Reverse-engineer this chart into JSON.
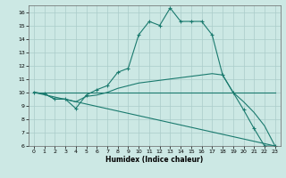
{
  "xlabel": "Humidex (Indice chaleur)",
  "xlim": [
    -0.5,
    23.5
  ],
  "ylim": [
    6,
    16.5
  ],
  "yticks": [
    6,
    7,
    8,
    9,
    10,
    11,
    12,
    13,
    14,
    15,
    16
  ],
  "xticks": [
    0,
    1,
    2,
    3,
    4,
    5,
    6,
    7,
    8,
    9,
    10,
    11,
    12,
    13,
    14,
    15,
    16,
    17,
    18,
    19,
    20,
    21,
    22,
    23
  ],
  "bg_color": "#cce8e4",
  "grid_color": "#aaccca",
  "line_color": "#1a7a6e",
  "lines": [
    {
      "x": [
        0,
        1,
        2,
        3,
        4,
        5,
        6,
        7,
        8,
        9,
        10,
        11,
        12,
        13,
        14,
        15,
        16,
        17,
        18,
        19,
        20,
        21,
        22,
        23
      ],
      "y": [
        10,
        9.9,
        9.5,
        9.5,
        8.8,
        9.8,
        10.2,
        10.5,
        11.5,
        11.8,
        14.3,
        15.3,
        15.0,
        16.3,
        15.3,
        15.3,
        15.3,
        14.3,
        11.3,
        10.0,
        8.7,
        7.3,
        6.0,
        6.0
      ],
      "marker": true
    },
    {
      "x": [
        0,
        1,
        2,
        3,
        4,
        5,
        6,
        7,
        8,
        9,
        10,
        11,
        12,
        13,
        14,
        15,
        16,
        17,
        18,
        19,
        20,
        21,
        22,
        23
      ],
      "y": [
        10,
        9.9,
        9.5,
        9.5,
        9.3,
        9.7,
        9.8,
        10.0,
        10.3,
        10.5,
        10.7,
        10.8,
        10.9,
        11.0,
        11.1,
        11.2,
        11.3,
        11.4,
        11.3,
        10.0,
        9.3,
        8.5,
        7.5,
        6.0
      ],
      "marker": false
    },
    {
      "x": [
        0,
        23
      ],
      "y": [
        10,
        10
      ],
      "marker": false
    },
    {
      "x": [
        0,
        23
      ],
      "y": [
        10,
        6
      ],
      "marker": false
    }
  ]
}
